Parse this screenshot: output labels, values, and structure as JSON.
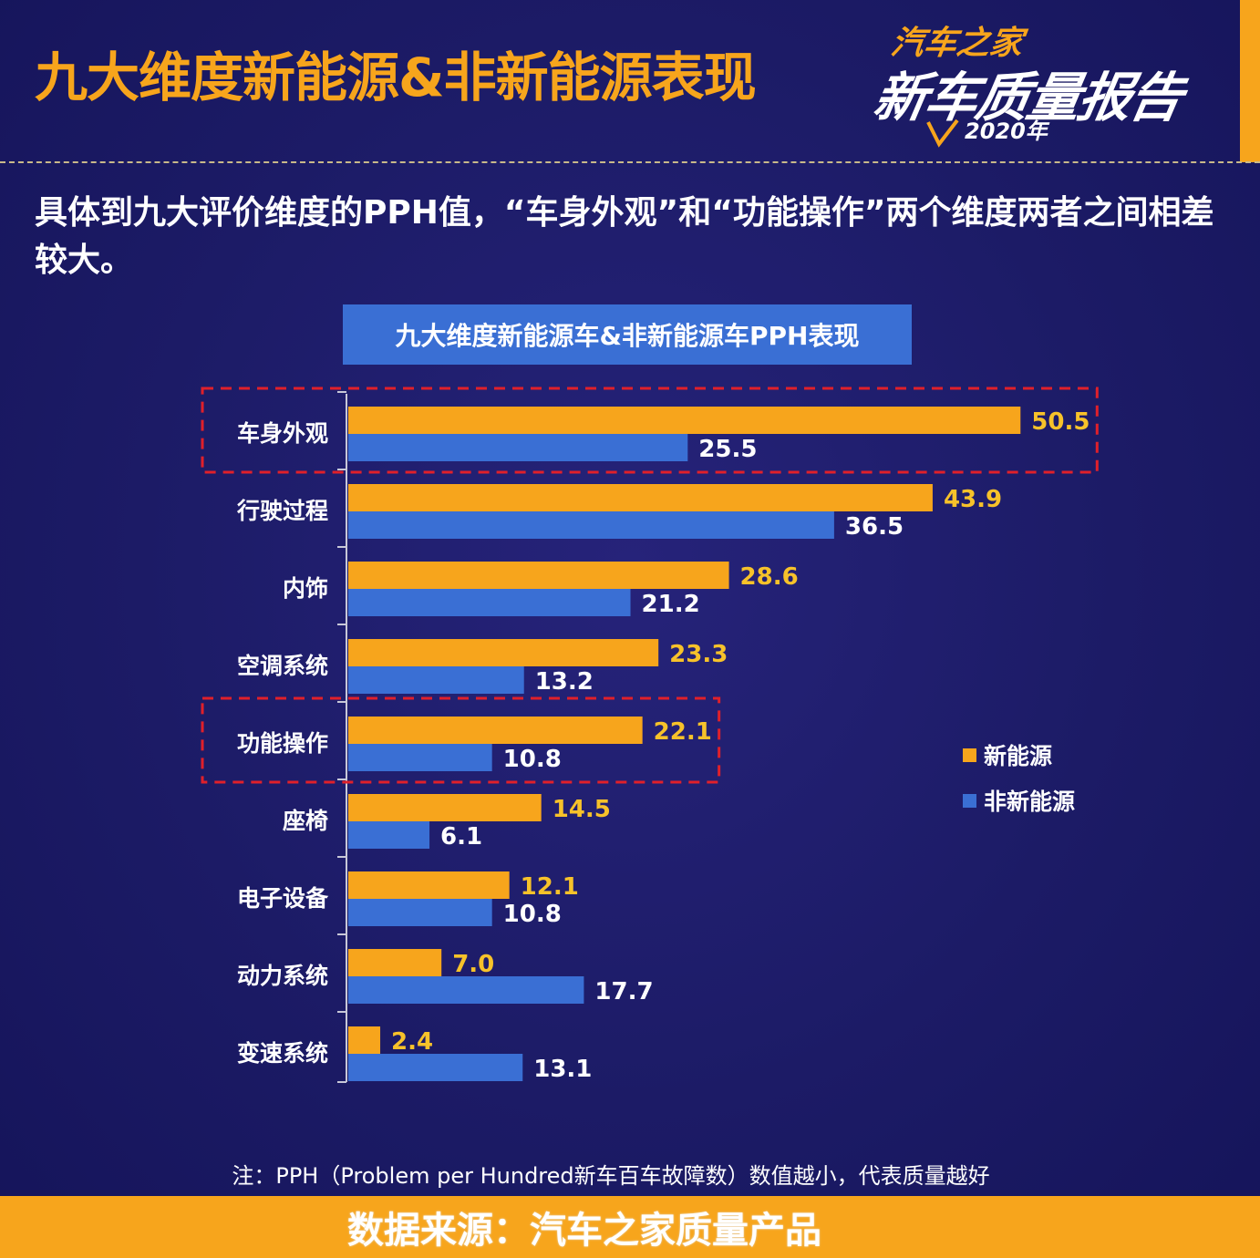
{
  "headline": "九大维度新能源&非新能源表现",
  "brand": {
    "top": "汽车之家",
    "main": "新车质量报告",
    "year": "2020年"
  },
  "intro": "具体到九大评价维度的PPH值，“车身外观”和“功能操作”两个维度两者之间相差较大。",
  "footnote": "注：PPH（Problem per Hundred新车百车故障数）数值越小，代表质量越好",
  "source": "数据来源：汽车之家质量产品",
  "colors": {
    "background": "#1c1b66",
    "accent": "#f7a51c",
    "new_energy": "#f7a51c",
    "non_new_energy": "#3a6fd4",
    "highlight_box": "#e0202a"
  },
  "chart_data": {
    "type": "bar",
    "orientation": "horizontal",
    "title": "九大维度新能源车&非新能源车PPH表现",
    "categories": [
      "车身外观",
      "行驶过程",
      "内饰",
      "空调系统",
      "功能操作",
      "座椅",
      "电子设备",
      "动力系统",
      "变速系统"
    ],
    "series": [
      {
        "name": "新能源",
        "color": "#f7a51c",
        "values": [
          50.5,
          43.9,
          28.6,
          23.3,
          22.1,
          14.5,
          12.1,
          7.0,
          2.4
        ]
      },
      {
        "name": "非新能源",
        "color": "#3a6fd4",
        "values": [
          25.5,
          36.5,
          21.2,
          13.2,
          10.8,
          6.1,
          10.8,
          17.7,
          13.1
        ]
      }
    ],
    "value_labels": [
      [
        "50.5",
        "43.9",
        "28.6",
        "23.3",
        "22.1",
        "14.5",
        "12.1",
        "7.0",
        "2.4"
      ],
      [
        "25.5",
        "36.5",
        "21.2",
        "13.2",
        "10.8",
        "6.1",
        "10.8",
        "17.7",
        "13.1"
      ]
    ],
    "highlighted_categories": [
      "车身外观",
      "功能操作"
    ],
    "legend_position": "right",
    "grid": false
  }
}
